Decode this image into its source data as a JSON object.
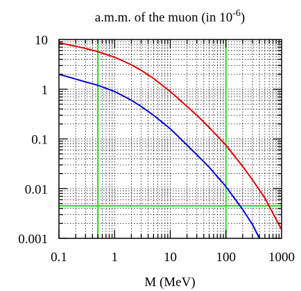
{
  "chart_data": {
    "type": "line",
    "title": "a.m.m. of the muon  (in 10",
    "title_exponent": "-6",
    "title_close": ")",
    "xlabel": "M  (MeV)",
    "ylabel": "",
    "x_scale": "log",
    "y_scale": "log",
    "xlim": [
      0.1,
      1000
    ],
    "ylim": [
      0.001,
      10
    ],
    "x_ticks": [
      {
        "value": 0.1,
        "label": "0.1"
      },
      {
        "value": 1,
        "label": "1"
      },
      {
        "value": 10,
        "label": "10"
      },
      {
        "value": 100,
        "label": "100"
      },
      {
        "value": 1000,
        "label": "1000"
      }
    ],
    "y_ticks": [
      {
        "value": 0.001,
        "label": "0.001"
      },
      {
        "value": 0.01,
        "label": "0.01"
      },
      {
        "value": 0.1,
        "label": "0.1"
      },
      {
        "value": 1,
        "label": "1"
      },
      {
        "value": 10,
        "label": "10"
      }
    ],
    "grid": true,
    "series": [
      {
        "color": "#e00000",
        "x": [
          0.1,
          0.2,
          0.3,
          0.5,
          1,
          2,
          3,
          5,
          10,
          20,
          30,
          50,
          100,
          200,
          300,
          500,
          1000
        ],
        "y": [
          8.6,
          7.3,
          6.6,
          5.7,
          4.4,
          3.1,
          2.4,
          1.65,
          0.9,
          0.45,
          0.3,
          0.17,
          0.075,
          0.028,
          0.015,
          0.0065,
          0.0015
        ]
      },
      {
        "color": "#0000dd",
        "x": [
          0.1,
          0.2,
          0.3,
          0.5,
          1,
          2,
          3,
          5,
          10,
          20,
          30,
          50,
          100,
          200,
          300,
          400
        ],
        "y": [
          2.0,
          1.6,
          1.4,
          1.2,
          0.9,
          0.6,
          0.45,
          0.3,
          0.16,
          0.075,
          0.048,
          0.027,
          0.011,
          0.0038,
          0.0019,
          0.001
        ]
      }
    ],
    "reference_lines": [
      {
        "orientation": "vertical",
        "value": 0.5,
        "color": "#22dd22"
      },
      {
        "orientation": "vertical",
        "value": 100,
        "color": "#22dd22"
      },
      {
        "orientation": "horizontal",
        "value": 0.0045,
        "color": "#22dd22"
      }
    ]
  }
}
